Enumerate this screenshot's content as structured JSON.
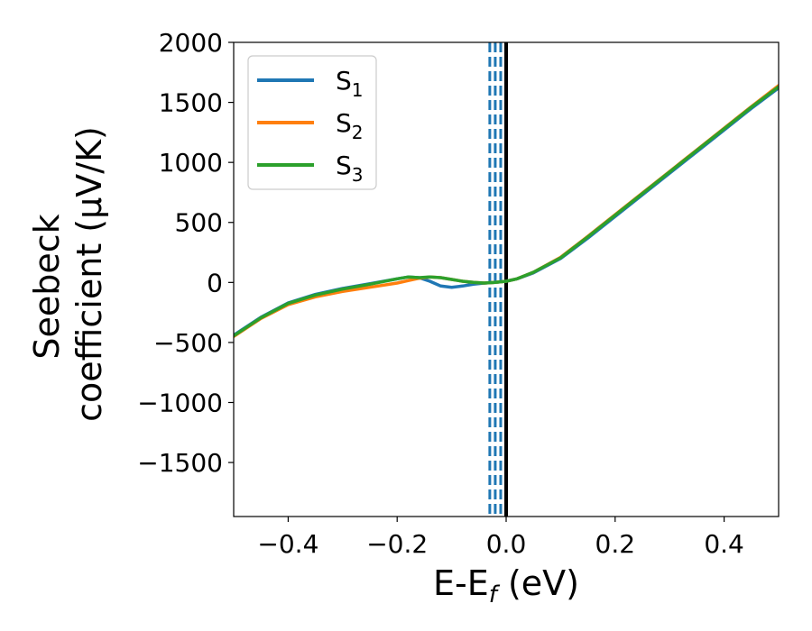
{
  "chart_data": {
    "type": "line",
    "title": "",
    "xlabel": {
      "main": "E-E",
      "sub": "f",
      "suffix": " (eV)"
    },
    "ylabel": {
      "line1": "Seebeck",
      "line2": "coefficient  (μV/K)"
    },
    "xlim": [
      -0.5,
      0.5
    ],
    "ylim": [
      -1950,
      2000
    ],
    "xticks": [
      -0.4,
      -0.2,
      0.0,
      0.2,
      0.4
    ],
    "xtick_labels": [
      "−0.4",
      "−0.2",
      "0.0",
      "0.2",
      "0.4"
    ],
    "yticks": [
      -1500,
      -1000,
      -500,
      0,
      500,
      1000,
      1500,
      2000
    ],
    "ytick_labels": [
      "−1500",
      "−1000",
      "−500",
      "0",
      "500",
      "1000",
      "1500",
      "2000"
    ],
    "grid": false,
    "legend_placement": "top-left",
    "series": [
      {
        "name": "S",
        "sub": "1",
        "color": "#1f77b4",
        "x": [
          -0.5,
          -0.45,
          -0.4,
          -0.35,
          -0.3,
          -0.25,
          -0.2,
          -0.18,
          -0.16,
          -0.14,
          -0.12,
          -0.1,
          -0.08,
          -0.06,
          -0.04,
          -0.02,
          0.0,
          0.02,
          0.05,
          0.1,
          0.15,
          0.2,
          0.25,
          0.3,
          0.35,
          0.4,
          0.45,
          0.5
        ],
        "y": [
          -440,
          -290,
          -170,
          -100,
          -50,
          -10,
          30,
          45,
          40,
          10,
          -30,
          -40,
          -30,
          -15,
          -5,
          0,
          10,
          30,
          80,
          200,
          370,
          550,
          730,
          910,
          1090,
          1270,
          1450,
          1620
        ]
      },
      {
        "name": "S",
        "sub": "2",
        "color": "#ff7f0e",
        "x": [
          -0.5,
          -0.45,
          -0.4,
          -0.35,
          -0.3,
          -0.25,
          -0.2,
          -0.18,
          -0.16,
          -0.14,
          -0.12,
          -0.1,
          -0.08,
          -0.06,
          -0.04,
          -0.02,
          0.0,
          0.02,
          0.05,
          0.1,
          0.15,
          0.2,
          0.25,
          0.3,
          0.35,
          0.4,
          0.45,
          0.5
        ],
        "y": [
          -450,
          -300,
          -185,
          -120,
          -75,
          -40,
          -5,
          15,
          35,
          45,
          40,
          25,
          10,
          0,
          -5,
          0,
          10,
          30,
          85,
          210,
          385,
          565,
          745,
          925,
          1105,
          1285,
          1465,
          1640
        ]
      },
      {
        "name": "S",
        "sub": "3",
        "color": "#2ca02c",
        "x": [
          -0.5,
          -0.45,
          -0.4,
          -0.35,
          -0.3,
          -0.25,
          -0.2,
          -0.18,
          -0.16,
          -0.14,
          -0.12,
          -0.1,
          -0.08,
          -0.06,
          -0.04,
          -0.02,
          0.0,
          0.02,
          0.05,
          0.1,
          0.15,
          0.2,
          0.25,
          0.3,
          0.35,
          0.4,
          0.45,
          0.5
        ],
        "y": [
          -445,
          -295,
          -175,
          -105,
          -55,
          -15,
          30,
          45,
          40,
          45,
          40,
          25,
          10,
          0,
          -5,
          0,
          10,
          30,
          85,
          205,
          380,
          560,
          740,
          920,
          1100,
          1280,
          1460,
          1630
        ]
      }
    ],
    "vlines": [
      {
        "x": -0.03,
        "color": "#1f77b4",
        "style": "dashed"
      },
      {
        "x": -0.02,
        "color": "#1f77b4",
        "style": "dashed"
      },
      {
        "x": -0.01,
        "color": "#1f77b4",
        "style": "dashed"
      },
      {
        "x": 0.0,
        "color": "#000000",
        "style": "solid"
      }
    ]
  }
}
